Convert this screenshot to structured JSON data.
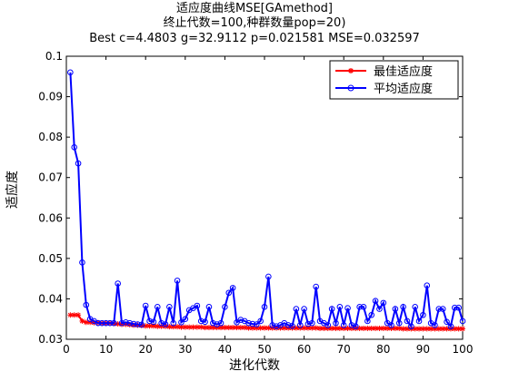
{
  "chart_data": {
    "type": "line",
    "title": [
      "适应度曲线MSE[GAmethod]",
      "终止代数=100,种群数量pop=20)",
      "Best c=4.4803 g=32.9112 p=0.021581 MSE=0.032597"
    ],
    "xlabel": "进化代数",
    "ylabel": "适应度",
    "xlim": [
      0,
      100
    ],
    "ylim": [
      0.03,
      0.1
    ],
    "xticks": [
      "0",
      "10",
      "20",
      "30",
      "40",
      "50",
      "60",
      "70",
      "80",
      "90",
      "100"
    ],
    "yticks": [
      "0.03",
      "0.04",
      "0.05",
      "0.06",
      "0.07",
      "0.08",
      "0.09",
      "0.1"
    ],
    "grid": false,
    "legend_position": "top-right",
    "series": [
      {
        "name": "最佳适应度",
        "color": "#ff0000",
        "marker": "asterisk",
        "x": [
          1,
          2,
          3,
          4,
          5,
          6,
          7,
          8,
          9,
          10,
          11,
          12,
          13,
          14,
          15,
          16,
          17,
          18,
          19,
          20,
          21,
          22,
          23,
          24,
          25,
          26,
          27,
          28,
          29,
          30,
          31,
          32,
          33,
          34,
          35,
          36,
          37,
          38,
          39,
          40,
          41,
          42,
          43,
          44,
          45,
          46,
          47,
          48,
          49,
          50,
          51,
          52,
          53,
          54,
          55,
          56,
          57,
          58,
          59,
          60,
          61,
          62,
          63,
          64,
          65,
          66,
          67,
          68,
          69,
          70,
          71,
          72,
          73,
          74,
          75,
          76,
          77,
          78,
          79,
          80,
          81,
          82,
          83,
          84,
          85,
          86,
          87,
          88,
          89,
          90,
          91,
          92,
          93,
          94,
          95,
          96,
          97,
          98,
          99,
          100
        ],
        "values": [
          0.036,
          0.036,
          0.036,
          0.0345,
          0.0342,
          0.0342,
          0.0341,
          0.0341,
          0.034,
          0.034,
          0.034,
          0.0339,
          0.0338,
          0.0337,
          0.0337,
          0.0336,
          0.0335,
          0.0335,
          0.0334,
          0.0333,
          0.0333,
          0.0333,
          0.0332,
          0.0332,
          0.0332,
          0.0331,
          0.0331,
          0.0331,
          0.033,
          0.033,
          0.033,
          0.033,
          0.033,
          0.033,
          0.0329,
          0.0329,
          0.0329,
          0.0329,
          0.0329,
          0.0329,
          0.0329,
          0.0329,
          0.0329,
          0.0329,
          0.0329,
          0.0328,
          0.0328,
          0.0328,
          0.0328,
          0.0328,
          0.0328,
          0.0328,
          0.0328,
          0.0328,
          0.0328,
          0.0328,
          0.0328,
          0.0328,
          0.0328,
          0.0328,
          0.0328,
          0.0328,
          0.0328,
          0.0327,
          0.0327,
          0.0327,
          0.0327,
          0.0327,
          0.0327,
          0.0327,
          0.0327,
          0.0327,
          0.0327,
          0.0327,
          0.0327,
          0.0327,
          0.0327,
          0.0327,
          0.0327,
          0.0327,
          0.0327,
          0.0327,
          0.0327,
          0.0327,
          0.0326,
          0.0326,
          0.0326,
          0.0326,
          0.0326,
          0.0326,
          0.0326,
          0.0326,
          0.0326,
          0.0326,
          0.0326,
          0.0326,
          0.0326,
          0.0326,
          0.0326,
          0.0326
        ]
      },
      {
        "name": "平均适应度",
        "color": "#0000ff",
        "marker": "circle",
        "x": [
          1,
          2,
          3,
          4,
          5,
          6,
          7,
          8,
          9,
          10,
          11,
          12,
          13,
          14,
          15,
          16,
          17,
          18,
          19,
          20,
          21,
          22,
          23,
          24,
          25,
          26,
          27,
          28,
          29,
          30,
          31,
          32,
          33,
          34,
          35,
          36,
          37,
          38,
          39,
          40,
          41,
          42,
          43,
          44,
          45,
          46,
          47,
          48,
          49,
          50,
          51,
          52,
          53,
          54,
          55,
          56,
          57,
          58,
          59,
          60,
          61,
          62,
          63,
          64,
          65,
          66,
          67,
          68,
          69,
          70,
          71,
          72,
          73,
          74,
          75,
          76,
          77,
          78,
          79,
          80,
          81,
          82,
          83,
          84,
          85,
          86,
          87,
          88,
          89,
          90,
          91,
          92,
          93,
          94,
          95,
          96,
          97,
          98,
          99,
          100
        ],
        "values": [
          0.096,
          0.0775,
          0.0735,
          0.049,
          0.0385,
          0.035,
          0.0345,
          0.034,
          0.034,
          0.034,
          0.034,
          0.034,
          0.0438,
          0.034,
          0.0342,
          0.034,
          0.0338,
          0.0337,
          0.0336,
          0.0383,
          0.0345,
          0.0343,
          0.038,
          0.034,
          0.0337,
          0.038,
          0.034,
          0.0445,
          0.0342,
          0.035,
          0.0372,
          0.0377,
          0.0383,
          0.0345,
          0.0343,
          0.038,
          0.034,
          0.0337,
          0.034,
          0.038,
          0.0415,
          0.0427,
          0.0342,
          0.0348,
          0.0345,
          0.034,
          0.0338,
          0.0337,
          0.0345,
          0.038,
          0.0455,
          0.0335,
          0.0332,
          0.0335,
          0.034,
          0.0335,
          0.0333,
          0.0375,
          0.0335,
          0.0375,
          0.0338,
          0.034,
          0.043,
          0.0345,
          0.034,
          0.0335,
          0.0375,
          0.034,
          0.038,
          0.0335,
          0.0377,
          0.0335,
          0.0332,
          0.038,
          0.038,
          0.0345,
          0.036,
          0.0395,
          0.0375,
          0.039,
          0.034,
          0.0335,
          0.0375,
          0.034,
          0.038,
          0.0345,
          0.0332,
          0.038,
          0.0345,
          0.036,
          0.0433,
          0.034,
          0.0335,
          0.0375,
          0.0375,
          0.0343,
          0.0332,
          0.0378,
          0.0378,
          0.0345
        ]
      }
    ]
  }
}
